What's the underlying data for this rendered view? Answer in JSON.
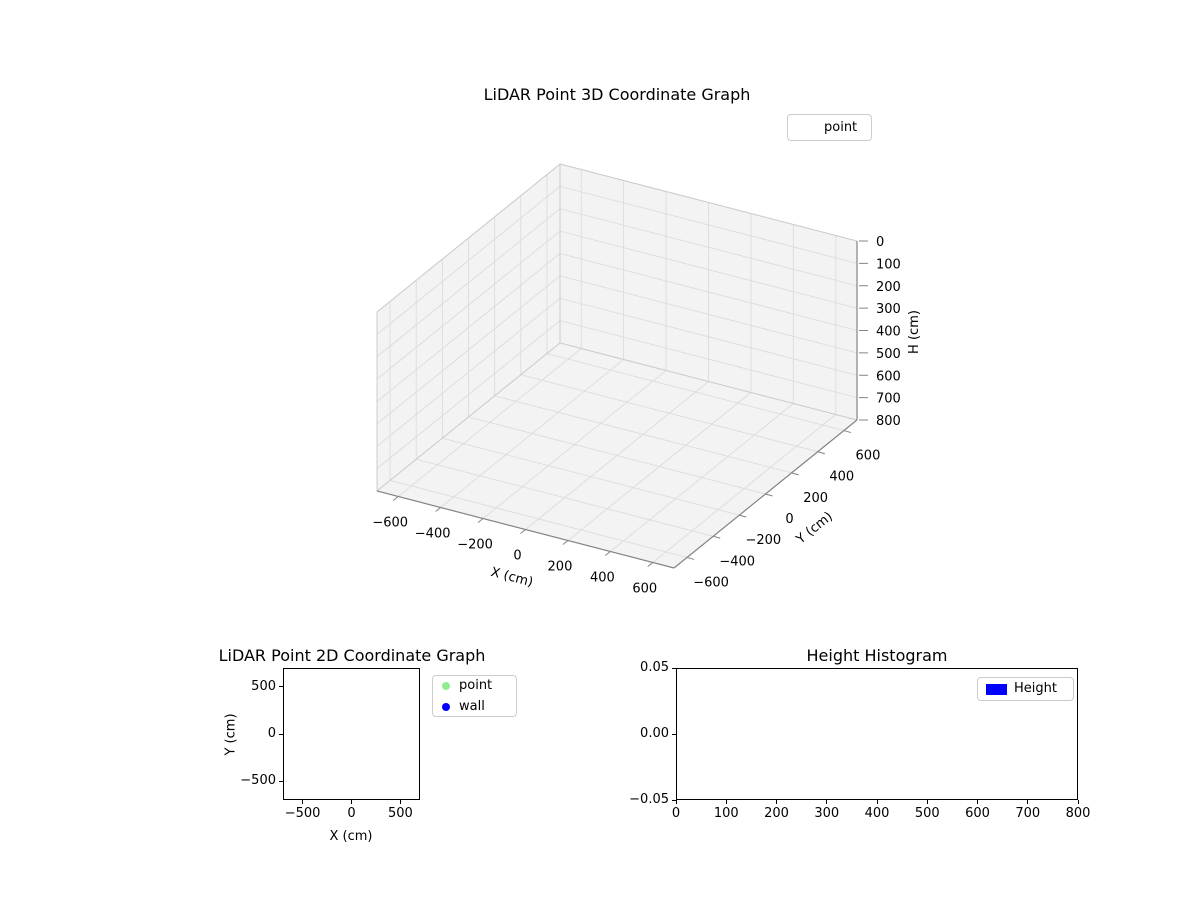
{
  "figure": {
    "background": "#ffffff"
  },
  "plot3d": {
    "title": "LiDAR Point 3D Coordinate Graph",
    "xlabel": "X (cm)",
    "ylabel": "Y (cm)",
    "zlabel": "H (cm)",
    "xlim": [
      -700,
      700
    ],
    "ylim": [
      -700,
      700
    ],
    "zlim": [
      0,
      800
    ],
    "z_axis_inverted": true,
    "x_tick_values": [
      -600,
      -400,
      -200,
      0,
      200,
      400,
      600
    ],
    "x_tick_labels": [
      "−600",
      "−400",
      "−200",
      "0",
      "200",
      "400",
      "600"
    ],
    "y_tick_values": [
      -600,
      -400,
      -200,
      0,
      200,
      400,
      600
    ],
    "y_tick_labels": [
      "−600",
      "−400",
      "−200",
      "0",
      "200",
      "400",
      "600"
    ],
    "z_tick_values": [
      0,
      100,
      200,
      300,
      400,
      500,
      600,
      700,
      800
    ],
    "z_tick_labels": [
      "0",
      "100",
      "200",
      "300",
      "400",
      "500",
      "600",
      "700",
      "800"
    ],
    "legend": {
      "items": [
        {
          "label": "point",
          "marker_color": "none"
        }
      ]
    },
    "colors": {
      "pane": "#f3f3f3",
      "grid": "#dcdcdc",
      "outline": "#cccccc",
      "spine": "#848484",
      "text": "#000000"
    }
  },
  "plot2d": {
    "title": "LiDAR Point 2D Coordinate Graph",
    "xlabel": "X (cm)",
    "ylabel": "Y (cm)",
    "xlim": [
      -700,
      700
    ],
    "ylim": [
      -700,
      700
    ],
    "x_tick_values": [
      -500,
      0,
      500
    ],
    "x_tick_labels": [
      "−500",
      "0",
      "500"
    ],
    "y_tick_values": [
      500,
      0,
      -500
    ],
    "y_tick_labels": [
      "500",
      "0",
      "−500"
    ],
    "legend": {
      "items": [
        {
          "label": "point",
          "marker_color": "#90ee90"
        },
        {
          "label": "wall",
          "marker_color": "#0000ff"
        }
      ]
    }
  },
  "hist": {
    "title": "Height Histogram",
    "xlim": [
      0,
      800
    ],
    "ylim": [
      -0.05,
      0.05
    ],
    "x_tick_values": [
      0,
      100,
      200,
      300,
      400,
      500,
      600,
      700,
      800
    ],
    "x_tick_labels": [
      "0",
      "100",
      "200",
      "300",
      "400",
      "500",
      "600",
      "700",
      "800"
    ],
    "y_tick_values": [
      0.05,
      0,
      -0.05
    ],
    "y_tick_labels": [
      "0.05",
      "0.00",
      "−0.05"
    ],
    "legend": {
      "items": [
        {
          "label": "Height",
          "swatch_color": "#0000ff"
        }
      ]
    }
  },
  "chart_data": [
    {
      "type": "scatter",
      "projection": "3d",
      "title": "LiDAR Point 3D Coordinate Graph",
      "xlabel": "X (cm)",
      "ylabel": "Y (cm)",
      "zlabel": "H (cm)",
      "xlim": [
        -700,
        700
      ],
      "ylim": [
        -700,
        700
      ],
      "zlim": [
        0,
        800
      ],
      "z_axis_inverted": true,
      "grid": true,
      "legend_position": "upper right",
      "x_ticks": [
        -600,
        -400,
        -200,
        0,
        200,
        400,
        600
      ],
      "y_ticks": [
        -600,
        -400,
        -200,
        0,
        200,
        400,
        600
      ],
      "z_ticks": [
        0,
        100,
        200,
        300,
        400,
        500,
        600,
        700,
        800
      ],
      "series": [
        {
          "name": "point",
          "x": [],
          "y": [],
          "z": []
        }
      ]
    },
    {
      "type": "scatter",
      "title": "LiDAR Point 2D Coordinate Graph",
      "xlabel": "X (cm)",
      "ylabel": "Y (cm)",
      "xlim": [
        -700,
        700
      ],
      "ylim": [
        -700,
        700
      ],
      "grid": false,
      "legend_position": "outside upper right",
      "x_ticks": [
        -500,
        0,
        500
      ],
      "y_ticks": [
        -500,
        0,
        500
      ],
      "series": [
        {
          "name": "point",
          "color": "#90ee90",
          "x": [],
          "y": []
        },
        {
          "name": "wall",
          "color": "#0000ff",
          "x": [],
          "y": []
        }
      ]
    },
    {
      "type": "histogram",
      "title": "Height Histogram",
      "xlim": [
        0,
        800
      ],
      "ylim": [
        -0.05,
        0.05
      ],
      "grid": false,
      "legend_position": "upper right",
      "x_ticks": [
        0,
        100,
        200,
        300,
        400,
        500,
        600,
        700,
        800
      ],
      "y_ticks": [
        -0.05,
        0.0,
        0.05
      ],
      "series": [
        {
          "name": "Height",
          "color": "#0000ff",
          "values": []
        }
      ]
    }
  ]
}
